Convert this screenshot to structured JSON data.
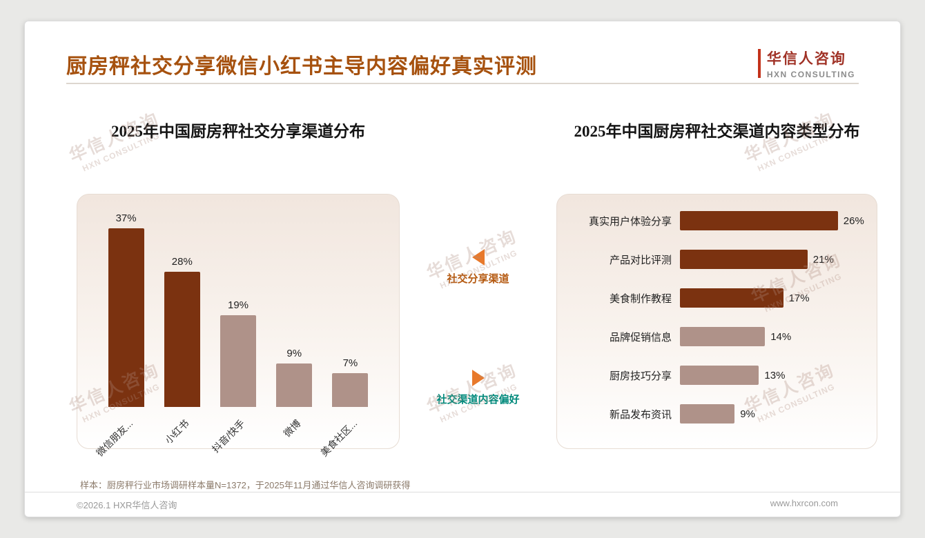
{
  "header": {
    "title": "厨房秤社交分享微信小红书主导内容偏好真实评测",
    "logo": {
      "name": "华信人咨询",
      "subtitle": "HXN CONSULTING"
    }
  },
  "watermark": {
    "line1": "华信人咨询",
    "line2": "HXN CONSULTING"
  },
  "annotations": {
    "left_chart_label": "社交分享渠道",
    "right_chart_label": "社交渠道内容偏好"
  },
  "chart_data": [
    {
      "type": "bar",
      "orientation": "vertical",
      "title": "2025年中国厨房秤社交分享渠道分布",
      "categories": [
        "微信朋友...",
        "小红书",
        "抖音/快手",
        "微博",
        "美食社区..."
      ],
      "values": [
        37,
        28,
        19,
        9,
        7
      ],
      "unit": "%",
      "ylim": [
        0,
        40
      ],
      "grid": false,
      "colors": [
        "#7B3210",
        "#7B3210",
        "#AF9289",
        "#AF9289",
        "#AF9289"
      ]
    },
    {
      "type": "bar",
      "orientation": "horizontal",
      "title": "2025年中国厨房秤社交渠道内容类型分布",
      "categories": [
        "真实用户体验分享",
        "产品对比评测",
        "美食制作教程",
        "品牌促销信息",
        "厨房技巧分享",
        "新品发布资讯"
      ],
      "values": [
        26,
        21,
        17,
        14,
        13,
        9
      ],
      "unit": "%",
      "xlim": [
        0,
        30
      ],
      "grid": false,
      "colors": [
        "#7B3210",
        "#7B3210",
        "#7B3210",
        "#AF9289",
        "#AF9289",
        "#AF9289"
      ]
    }
  ],
  "footnote": "样本：厨房秤行业市场调研样本量N=1372，于2025年11月通过华信人咨询调研获得",
  "footer": {
    "copyright": "©2026.1 HXR华信人咨询",
    "website": "www.hxrcon.com"
  }
}
